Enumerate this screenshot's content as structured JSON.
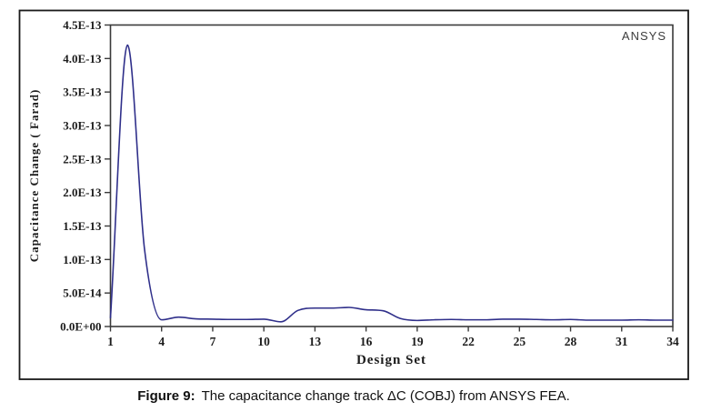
{
  "figure": {
    "watermark": "ANSYS",
    "caption_label": "Figure 9:",
    "caption_text": "The capacitance change track ΔC (COBJ) from ANSYS FEA."
  },
  "chart_data": {
    "type": "line",
    "title": "",
    "xlabel": "Design Set",
    "ylabel": "Capacitance Change ( Farad)",
    "xlim": [
      1,
      34
    ],
    "ylim": [
      0,
      4.5e-13
    ],
    "grid": false,
    "legend": "none",
    "annotation_top_right": "ANSYS",
    "line_color": "#2f2f8a",
    "axis_color": "#3a3a3a",
    "x_ticks": [
      1,
      4,
      7,
      10,
      13,
      16,
      19,
      22,
      25,
      28,
      31,
      34
    ],
    "y_ticks": [
      {
        "value": 0.0,
        "label": "0.0E+00"
      },
      {
        "value": 5e-14,
        "label": "5.0E-14"
      },
      {
        "value": 1e-13,
        "label": "1.0E-13"
      },
      {
        "value": 1.5e-13,
        "label": "1.5E-13"
      },
      {
        "value": 2e-13,
        "label": "2.0E-13"
      },
      {
        "value": 2.5e-13,
        "label": "2.5E-13"
      },
      {
        "value": 3e-13,
        "label": "3.0E-13"
      },
      {
        "value": 3.5e-13,
        "label": "3.5E-13"
      },
      {
        "value": 4e-13,
        "label": "4.0E-13"
      },
      {
        "value": 4.5e-13,
        "label": "4.5E-13"
      }
    ],
    "series": [
      {
        "name": "ΔC (COBJ)",
        "points": [
          [
            1,
            1.3e-14
          ],
          [
            2,
            4.2e-13
          ],
          [
            3,
            1.15e-13
          ],
          [
            4,
            1e-14
          ],
          [
            5,
            1.4e-14
          ],
          [
            6,
            1.15e-14
          ],
          [
            7,
            1.1e-14
          ],
          [
            8,
            1.05e-14
          ],
          [
            9,
            1.05e-14
          ],
          [
            10,
            1.1e-14
          ],
          [
            11,
            7e-15
          ],
          [
            12,
            2.4e-14
          ],
          [
            13,
            2.75e-14
          ],
          [
            14,
            2.75e-14
          ],
          [
            15,
            2.85e-14
          ],
          [
            16,
            2.5e-14
          ],
          [
            17,
            2.35e-14
          ],
          [
            18,
            1.2e-14
          ],
          [
            19,
            9e-15
          ],
          [
            20,
            1e-14
          ],
          [
            21,
            1.05e-14
          ],
          [
            22,
            1e-14
          ],
          [
            23,
            1e-14
          ],
          [
            24,
            1.1e-14
          ],
          [
            25,
            1.1e-14
          ],
          [
            26,
            1.05e-14
          ],
          [
            27,
            1e-14
          ],
          [
            28,
            1.05e-14
          ],
          [
            29,
            9.5e-15
          ],
          [
            30,
            9.5e-15
          ],
          [
            31,
            9.5e-15
          ],
          [
            32,
            1e-14
          ],
          [
            33,
            9.5e-15
          ],
          [
            34,
            9.5e-15
          ]
        ]
      }
    ]
  }
}
